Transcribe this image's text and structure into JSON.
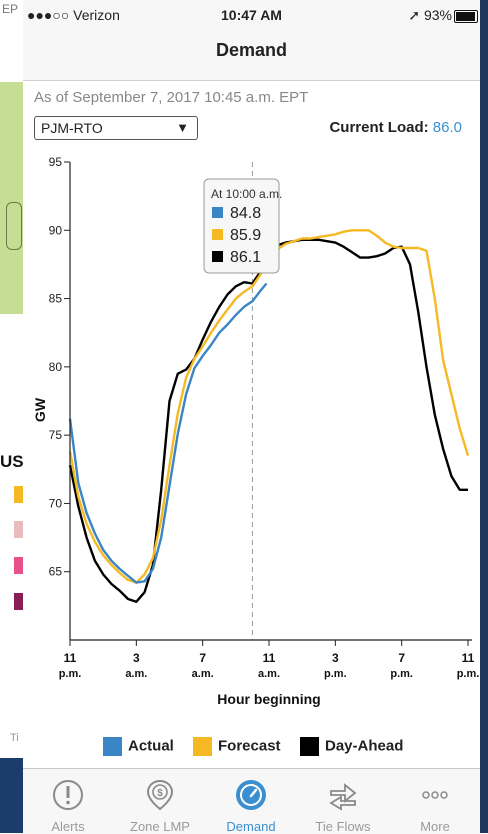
{
  "status_bar": {
    "carrier": "●●●○○ Verizon",
    "time": "10:47 AM",
    "battery": "93%"
  },
  "nav": {
    "title": "Demand"
  },
  "as_of": "As of September 7, 2017 10:45 a.m. EPT",
  "zone": {
    "selected": "PJM-RTO"
  },
  "current_load": {
    "label": "Current Load:",
    "value": "86.0"
  },
  "background": {
    "left_top_text": "EP",
    "left_mid_text": "US",
    "left_tab_text": "Ti"
  },
  "tooltip": {
    "title": "At 10:00 a.m.",
    "values": [
      "84.8",
      "85.9",
      "86.1"
    ]
  },
  "colors": {
    "actual": "#3a85c6",
    "forecast": "#f5b923",
    "day_ahead": "#000000",
    "accent": "#3a8fd0"
  },
  "chart_data": {
    "type": "line",
    "xlabel": "Hour beginning",
    "ylabel": "GW",
    "ylim": [
      60,
      95
    ],
    "xlim": [
      0,
      24
    ],
    "y_ticks": [
      65,
      70,
      75,
      80,
      85,
      90,
      95
    ],
    "x_ticks": [
      {
        "x": 0,
        "line1": "11",
        "line2": "p.m."
      },
      {
        "x": 4,
        "line1": "3",
        "line2": "a.m."
      },
      {
        "x": 8,
        "line1": "7",
        "line2": "a.m."
      },
      {
        "x": 12,
        "line1": "11",
        "line2": "a.m."
      },
      {
        "x": 16,
        "line1": "3",
        "line2": "p.m."
      },
      {
        "x": 20,
        "line1": "7",
        "line2": "p.m."
      },
      {
        "x": 24,
        "line1": "11",
        "line2": "p.m."
      }
    ],
    "cursor_x": 11,
    "series": [
      {
        "name": "Actual",
        "color": "#3a85c6",
        "x": [
          0,
          0.5,
          1,
          1.5,
          2,
          2.5,
          3,
          3.5,
          4,
          4.5,
          5,
          5.5,
          6,
          6.5,
          7,
          7.5,
          8,
          8.5,
          9,
          9.5,
          10,
          10.5,
          11,
          11.5,
          11.85
        ],
        "y": [
          76.2,
          71.5,
          69.3,
          67.8,
          66.6,
          65.8,
          65.2,
          64.7,
          64.2,
          64.3,
          65.2,
          67.5,
          71.3,
          75.1,
          78.0,
          79.9,
          80.8,
          81.6,
          82.5,
          83.1,
          83.8,
          84.4,
          84.8,
          85.6,
          86.1
        ]
      },
      {
        "name": "Forecast",
        "color": "#f5b923",
        "x": [
          0,
          0.5,
          1,
          1.5,
          2,
          2.5,
          3,
          3.5,
          4,
          4.5,
          5,
          5.5,
          6,
          6.5,
          7,
          7.5,
          8,
          8.5,
          9,
          9.5,
          10,
          10.5,
          11,
          11.5,
          12,
          12.5,
          13,
          13.5,
          14,
          14.5,
          15,
          15.5,
          16,
          16.5,
          17,
          17.5,
          18,
          18.5,
          19,
          19.5,
          20,
          20.5,
          21,
          21.5,
          22,
          22.5,
          23,
          23.5,
          24
        ],
        "y": [
          73.8,
          70.5,
          68.5,
          67.2,
          66.2,
          65.5,
          64.9,
          64.4,
          64.2,
          64.8,
          66.0,
          68.8,
          72.8,
          76.6,
          79.2,
          80.6,
          81.5,
          82.5,
          83.4,
          84.2,
          85.0,
          85.5,
          85.9,
          86.8,
          87.8,
          88.6,
          89.0,
          89.2,
          89.4,
          89.4,
          89.5,
          89.6,
          89.7,
          89.9,
          90.0,
          90.0,
          90.0,
          89.6,
          89.1,
          88.8,
          88.7,
          88.7,
          88.7,
          88.5,
          85.0,
          80.5,
          78.0,
          75.5,
          73.5
        ]
      },
      {
        "name": "Day-Ahead",
        "color": "#000000",
        "x": [
          0,
          0.5,
          1,
          1.5,
          2,
          2.5,
          3,
          3.5,
          4,
          4.5,
          5,
          5.5,
          6,
          6.5,
          7,
          7.5,
          8,
          8.5,
          9,
          9.5,
          10,
          10.5,
          11,
          11.5,
          12,
          12.5,
          13,
          13.5,
          14,
          14.5,
          15,
          15.5,
          16,
          16.5,
          17,
          17.5,
          18,
          18.5,
          19,
          19.5,
          20,
          20.5,
          21,
          21.5,
          22,
          22.5,
          23,
          23.5,
          24
        ],
        "y": [
          72.8,
          69.8,
          67.5,
          65.8,
          64.8,
          64.1,
          63.6,
          63.0,
          62.8,
          63.5,
          65.5,
          71.0,
          77.5,
          79.5,
          79.8,
          80.6,
          82.0,
          83.3,
          84.4,
          85.3,
          85.9,
          86.2,
          86.1,
          87.0,
          88.3,
          88.9,
          89.1,
          89.2,
          89.3,
          89.3,
          89.3,
          89.2,
          89.1,
          88.8,
          88.4,
          88.0,
          88.0,
          88.1,
          88.3,
          88.7,
          88.8,
          87.5,
          84.0,
          80.0,
          76.5,
          74.0,
          72.0,
          71.0,
          71.0
        ]
      }
    ]
  },
  "legend": [
    {
      "label": "Actual",
      "color": "#3a85c6"
    },
    {
      "label": "Forecast",
      "color": "#f5b923"
    },
    {
      "label": "Day-Ahead",
      "color": "#000000"
    }
  ],
  "tabs": [
    {
      "label": "Alerts",
      "icon": "alert-icon",
      "active": false
    },
    {
      "label": "Zone LMP",
      "icon": "zone-lmp-icon",
      "active": false
    },
    {
      "label": "Demand",
      "icon": "demand-gauge-icon",
      "active": true
    },
    {
      "label": "Tie Flows",
      "icon": "tie-flows-icon",
      "active": false
    },
    {
      "label": "More",
      "icon": "more-icon",
      "active": false
    }
  ]
}
